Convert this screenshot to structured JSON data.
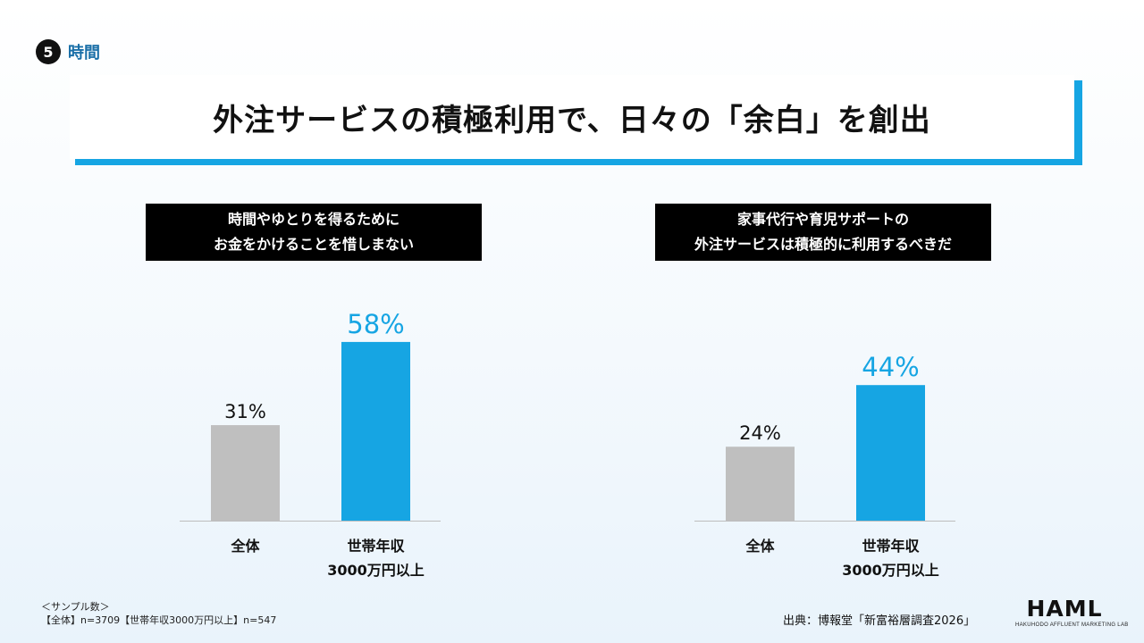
{
  "section": {
    "number": "5",
    "label": "時間"
  },
  "title": "外注サービスの積極利用で、日々の「余白」を創出",
  "chart_data": [
    {
      "type": "bar",
      "title_lines": [
        "時間やゆとりを得るために",
        "お金をかけることを惜しまない"
      ],
      "categories": [
        [
          "全体"
        ],
        [
          "世帯年収",
          "3000万円以上"
        ]
      ],
      "values": [
        31,
        58
      ],
      "value_labels": [
        "31%",
        "58%"
      ],
      "colors": [
        "#bfbfbf",
        "#16a5e3"
      ],
      "label_colors": [
        "#111111",
        "#16a5e3"
      ],
      "ylim": [
        0,
        100
      ]
    },
    {
      "type": "bar",
      "title_lines": [
        "家事代行や育児サポートの",
        "外注サービスは積極的に利用するべきだ"
      ],
      "categories": [
        [
          "全体"
        ],
        [
          "世帯年収",
          "3000万円以上"
        ]
      ],
      "values": [
        24,
        44
      ],
      "value_labels": [
        "24%",
        "44%"
      ],
      "colors": [
        "#bfbfbf",
        "#16a5e3"
      ],
      "label_colors": [
        "#111111",
        "#16a5e3"
      ],
      "ylim": [
        0,
        100
      ]
    }
  ],
  "footnote": {
    "line1": "＜サンプル数＞",
    "line2": "【全体】n=3709【世帯年収3000万円以上】n=547"
  },
  "source": "出典：博報堂「新富裕層調査2026」",
  "logo": {
    "main": "HAML",
    "sub": "HAKUHODO AFFLUENT MARKETING LAB"
  }
}
